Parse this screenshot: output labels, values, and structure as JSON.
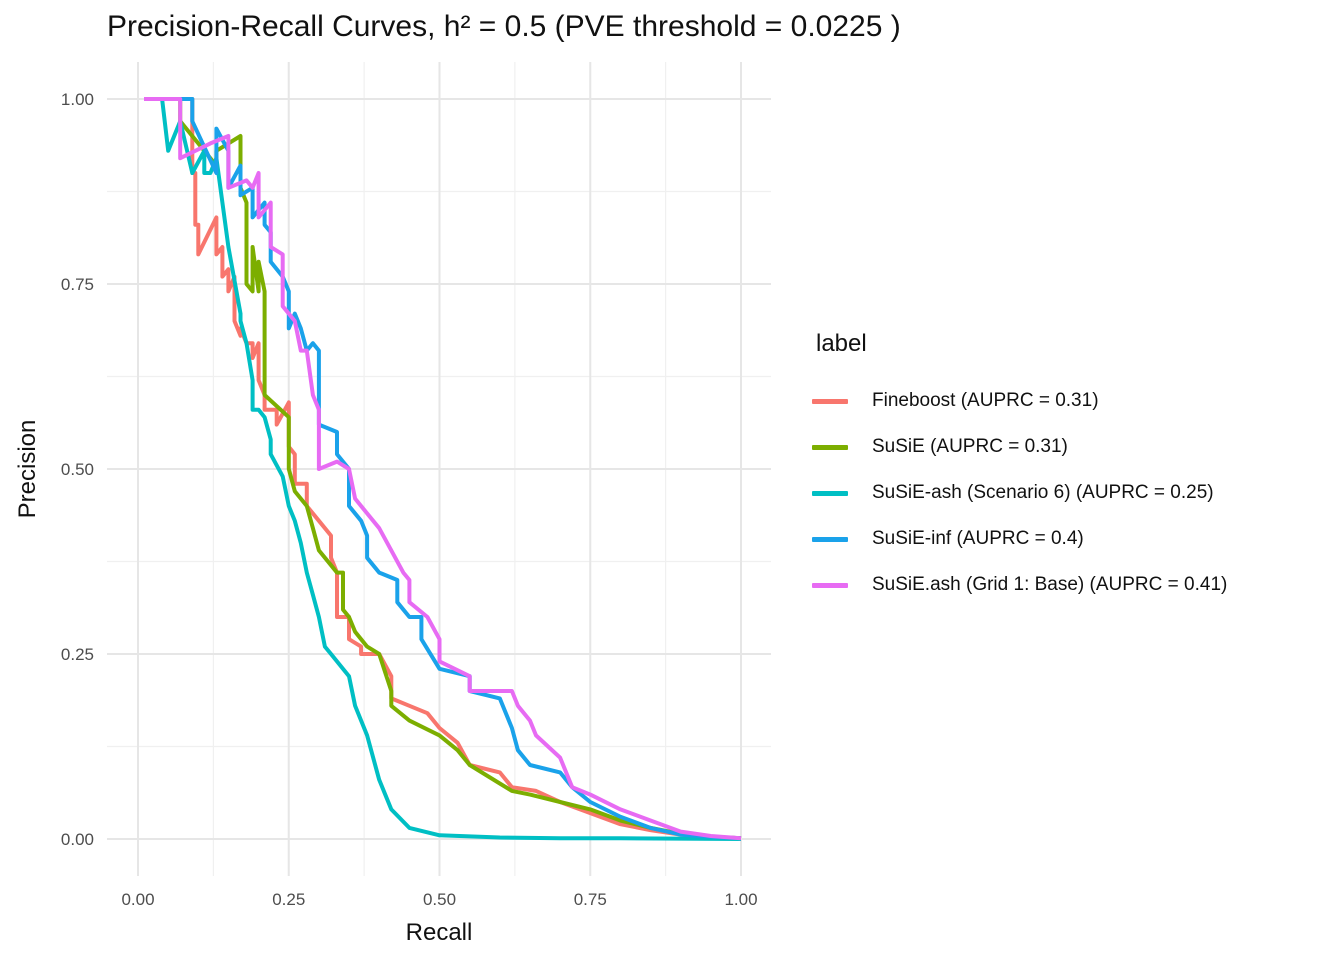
{
  "chart_data": {
    "type": "line",
    "title": "Precision-Recall Curves, h² = 0.5 (PVE threshold = 0.0225 )",
    "xlabel": "Recall",
    "ylabel": "Precision",
    "xlim": [
      0,
      1
    ],
    "ylim": [
      0,
      1
    ],
    "xticks": [
      "0.00",
      "0.25",
      "0.50",
      "0.75",
      "1.00"
    ],
    "yticks": [
      "0.00",
      "0.25",
      "0.50",
      "0.75",
      "1.00"
    ],
    "grid": true,
    "legend": {
      "title": "label",
      "position": "right"
    },
    "series": [
      {
        "name": "Fineboost (AUPRC = 0.31)",
        "color": "#F8766D",
        "points": [
          [
            0.01,
            1.0
          ],
          [
            0.09,
            1.0
          ],
          [
            0.09,
            0.9
          ],
          [
            0.095,
            0.9
          ],
          [
            0.095,
            0.83
          ],
          [
            0.1,
            0.83
          ],
          [
            0.1,
            0.79
          ],
          [
            0.13,
            0.84
          ],
          [
            0.13,
            0.79
          ],
          [
            0.14,
            0.8
          ],
          [
            0.14,
            0.76
          ],
          [
            0.15,
            0.77
          ],
          [
            0.15,
            0.74
          ],
          [
            0.16,
            0.76
          ],
          [
            0.16,
            0.7
          ],
          [
            0.17,
            0.68
          ],
          [
            0.17,
            0.69
          ],
          [
            0.18,
            0.67
          ],
          [
            0.19,
            0.67
          ],
          [
            0.19,
            0.65
          ],
          [
            0.2,
            0.67
          ],
          [
            0.2,
            0.62
          ],
          [
            0.21,
            0.6
          ],
          [
            0.21,
            0.58
          ],
          [
            0.23,
            0.58
          ],
          [
            0.23,
            0.56
          ],
          [
            0.25,
            0.59
          ],
          [
            0.25,
            0.53
          ],
          [
            0.26,
            0.52
          ],
          [
            0.26,
            0.48
          ],
          [
            0.28,
            0.48
          ],
          [
            0.28,
            0.45
          ],
          [
            0.3,
            0.43
          ],
          [
            0.32,
            0.41
          ],
          [
            0.32,
            0.38
          ],
          [
            0.33,
            0.36
          ],
          [
            0.33,
            0.3
          ],
          [
            0.35,
            0.3
          ],
          [
            0.35,
            0.27
          ],
          [
            0.37,
            0.26
          ],
          [
            0.37,
            0.25
          ],
          [
            0.4,
            0.25
          ],
          [
            0.42,
            0.22
          ],
          [
            0.42,
            0.19
          ],
          [
            0.45,
            0.18
          ],
          [
            0.48,
            0.17
          ],
          [
            0.5,
            0.15
          ],
          [
            0.53,
            0.13
          ],
          [
            0.55,
            0.1
          ],
          [
            0.6,
            0.09
          ],
          [
            0.62,
            0.07
          ],
          [
            0.66,
            0.065
          ],
          [
            0.7,
            0.05
          ],
          [
            0.75,
            0.035
          ],
          [
            0.8,
            0.02
          ],
          [
            0.85,
            0.012
          ],
          [
            0.9,
            0.006
          ],
          [
            0.95,
            0.003
          ],
          [
            1.0,
            0.001
          ]
        ]
      },
      {
        "name": "SuSiE (AUPRC = 0.31)",
        "color": "#7CAE00",
        "points": [
          [
            0.01,
            1.0
          ],
          [
            0.07,
            1.0
          ],
          [
            0.07,
            0.97
          ],
          [
            0.13,
            0.91
          ],
          [
            0.13,
            0.93
          ],
          [
            0.17,
            0.95
          ],
          [
            0.17,
            0.88
          ],
          [
            0.18,
            0.86
          ],
          [
            0.18,
            0.75
          ],
          [
            0.19,
            0.74
          ],
          [
            0.19,
            0.8
          ],
          [
            0.2,
            0.74
          ],
          [
            0.2,
            0.78
          ],
          [
            0.21,
            0.74
          ],
          [
            0.21,
            0.6
          ],
          [
            0.25,
            0.57
          ],
          [
            0.25,
            0.5
          ],
          [
            0.26,
            0.47
          ],
          [
            0.26,
            0.47
          ],
          [
            0.28,
            0.45
          ],
          [
            0.29,
            0.42
          ],
          [
            0.3,
            0.39
          ],
          [
            0.32,
            0.37
          ],
          [
            0.33,
            0.36
          ],
          [
            0.34,
            0.36
          ],
          [
            0.34,
            0.31
          ],
          [
            0.35,
            0.3
          ],
          [
            0.36,
            0.28
          ],
          [
            0.38,
            0.26
          ],
          [
            0.4,
            0.25
          ],
          [
            0.42,
            0.2
          ],
          [
            0.42,
            0.18
          ],
          [
            0.45,
            0.16
          ],
          [
            0.5,
            0.14
          ],
          [
            0.53,
            0.12
          ],
          [
            0.55,
            0.1
          ],
          [
            0.6,
            0.075
          ],
          [
            0.62,
            0.065
          ],
          [
            0.65,
            0.06
          ],
          [
            0.7,
            0.05
          ],
          [
            0.75,
            0.04
          ],
          [
            0.8,
            0.025
          ],
          [
            0.85,
            0.015
          ],
          [
            0.9,
            0.007
          ],
          [
            0.95,
            0.003
          ],
          [
            1.0,
            0.001
          ]
        ]
      },
      {
        "name": "SuSiE-ash (Scenario 6) (AUPRC = 0.25)",
        "color": "#00BFC4",
        "points": [
          [
            0.01,
            1.0
          ],
          [
            0.04,
            1.0
          ],
          [
            0.05,
            0.93
          ],
          [
            0.07,
            0.97
          ],
          [
            0.09,
            0.9
          ],
          [
            0.11,
            0.93
          ],
          [
            0.11,
            0.9
          ],
          [
            0.12,
            0.9
          ],
          [
            0.13,
            0.92
          ],
          [
            0.15,
            0.8
          ],
          [
            0.17,
            0.71
          ],
          [
            0.17,
            0.7
          ],
          [
            0.18,
            0.67
          ],
          [
            0.19,
            0.62
          ],
          [
            0.19,
            0.58
          ],
          [
            0.2,
            0.58
          ],
          [
            0.21,
            0.57
          ],
          [
            0.22,
            0.54
          ],
          [
            0.22,
            0.52
          ],
          [
            0.24,
            0.49
          ],
          [
            0.25,
            0.45
          ],
          [
            0.26,
            0.43
          ],
          [
            0.27,
            0.4
          ],
          [
            0.28,
            0.36
          ],
          [
            0.29,
            0.33
          ],
          [
            0.3,
            0.3
          ],
          [
            0.31,
            0.26
          ],
          [
            0.32,
            0.25
          ],
          [
            0.35,
            0.22
          ],
          [
            0.36,
            0.18
          ],
          [
            0.38,
            0.14
          ],
          [
            0.4,
            0.08
          ],
          [
            0.42,
            0.04
          ],
          [
            0.45,
            0.015
          ],
          [
            0.5,
            0.005
          ],
          [
            0.6,
            0.002
          ],
          [
            0.7,
            0.001
          ],
          [
            0.8,
            0.001
          ],
          [
            1.0,
            0.0
          ]
        ]
      },
      {
        "name": "SuSiE-inf (AUPRC = 0.4)",
        "color": "#1AA2EA",
        "points": [
          [
            0.01,
            1.0
          ],
          [
            0.09,
            1.0
          ],
          [
            0.09,
            0.97
          ],
          [
            0.13,
            0.9
          ],
          [
            0.13,
            0.96
          ],
          [
            0.15,
            0.93
          ],
          [
            0.15,
            0.88
          ],
          [
            0.17,
            0.91
          ],
          [
            0.17,
            0.87
          ],
          [
            0.19,
            0.88
          ],
          [
            0.19,
            0.84
          ],
          [
            0.21,
            0.86
          ],
          [
            0.21,
            0.83
          ],
          [
            0.22,
            0.82
          ],
          [
            0.22,
            0.78
          ],
          [
            0.24,
            0.76
          ],
          [
            0.25,
            0.74
          ],
          [
            0.25,
            0.69
          ],
          [
            0.26,
            0.71
          ],
          [
            0.27,
            0.69
          ],
          [
            0.28,
            0.66
          ],
          [
            0.29,
            0.67
          ],
          [
            0.3,
            0.66
          ],
          [
            0.3,
            0.56
          ],
          [
            0.33,
            0.55
          ],
          [
            0.33,
            0.52
          ],
          [
            0.35,
            0.5
          ],
          [
            0.35,
            0.45
          ],
          [
            0.37,
            0.43
          ],
          [
            0.38,
            0.41
          ],
          [
            0.38,
            0.38
          ],
          [
            0.4,
            0.36
          ],
          [
            0.43,
            0.35
          ],
          [
            0.43,
            0.32
          ],
          [
            0.45,
            0.3
          ],
          [
            0.47,
            0.3
          ],
          [
            0.47,
            0.27
          ],
          [
            0.5,
            0.23
          ],
          [
            0.55,
            0.22
          ],
          [
            0.55,
            0.2
          ],
          [
            0.6,
            0.19
          ],
          [
            0.62,
            0.15
          ],
          [
            0.63,
            0.12
          ],
          [
            0.65,
            0.1
          ],
          [
            0.7,
            0.09
          ],
          [
            0.72,
            0.07
          ],
          [
            0.75,
            0.05
          ],
          [
            0.8,
            0.03
          ],
          [
            0.85,
            0.015
          ],
          [
            0.9,
            0.006
          ],
          [
            0.95,
            0.003
          ],
          [
            1.0,
            0.001
          ]
        ]
      },
      {
        "name": "SuSiE.ash (Grid 1: Base) (AUPRC = 0.41)",
        "color": "#E76BF3",
        "points": [
          [
            0.01,
            1.0
          ],
          [
            0.07,
            1.0
          ],
          [
            0.07,
            0.92
          ],
          [
            0.12,
            0.94
          ],
          [
            0.15,
            0.95
          ],
          [
            0.15,
            0.88
          ],
          [
            0.18,
            0.89
          ],
          [
            0.19,
            0.88
          ],
          [
            0.2,
            0.9
          ],
          [
            0.2,
            0.84
          ],
          [
            0.22,
            0.86
          ],
          [
            0.22,
            0.8
          ],
          [
            0.24,
            0.79
          ],
          [
            0.24,
            0.72
          ],
          [
            0.26,
            0.7
          ],
          [
            0.27,
            0.66
          ],
          [
            0.28,
            0.66
          ],
          [
            0.29,
            0.6
          ],
          [
            0.3,
            0.58
          ],
          [
            0.3,
            0.5
          ],
          [
            0.33,
            0.51
          ],
          [
            0.35,
            0.5
          ],
          [
            0.36,
            0.46
          ],
          [
            0.38,
            0.44
          ],
          [
            0.4,
            0.42
          ],
          [
            0.42,
            0.39
          ],
          [
            0.44,
            0.36
          ],
          [
            0.45,
            0.35
          ],
          [
            0.45,
            0.32
          ],
          [
            0.48,
            0.3
          ],
          [
            0.5,
            0.27
          ],
          [
            0.5,
            0.24
          ],
          [
            0.55,
            0.22
          ],
          [
            0.55,
            0.2
          ],
          [
            0.62,
            0.2
          ],
          [
            0.63,
            0.18
          ],
          [
            0.65,
            0.16
          ],
          [
            0.66,
            0.14
          ],
          [
            0.7,
            0.11
          ],
          [
            0.72,
            0.07
          ],
          [
            0.75,
            0.06
          ],
          [
            0.8,
            0.04
          ],
          [
            0.85,
            0.025
          ],
          [
            0.9,
            0.01
          ],
          [
            0.95,
            0.004
          ],
          [
            1.0,
            0.001
          ]
        ]
      }
    ]
  }
}
